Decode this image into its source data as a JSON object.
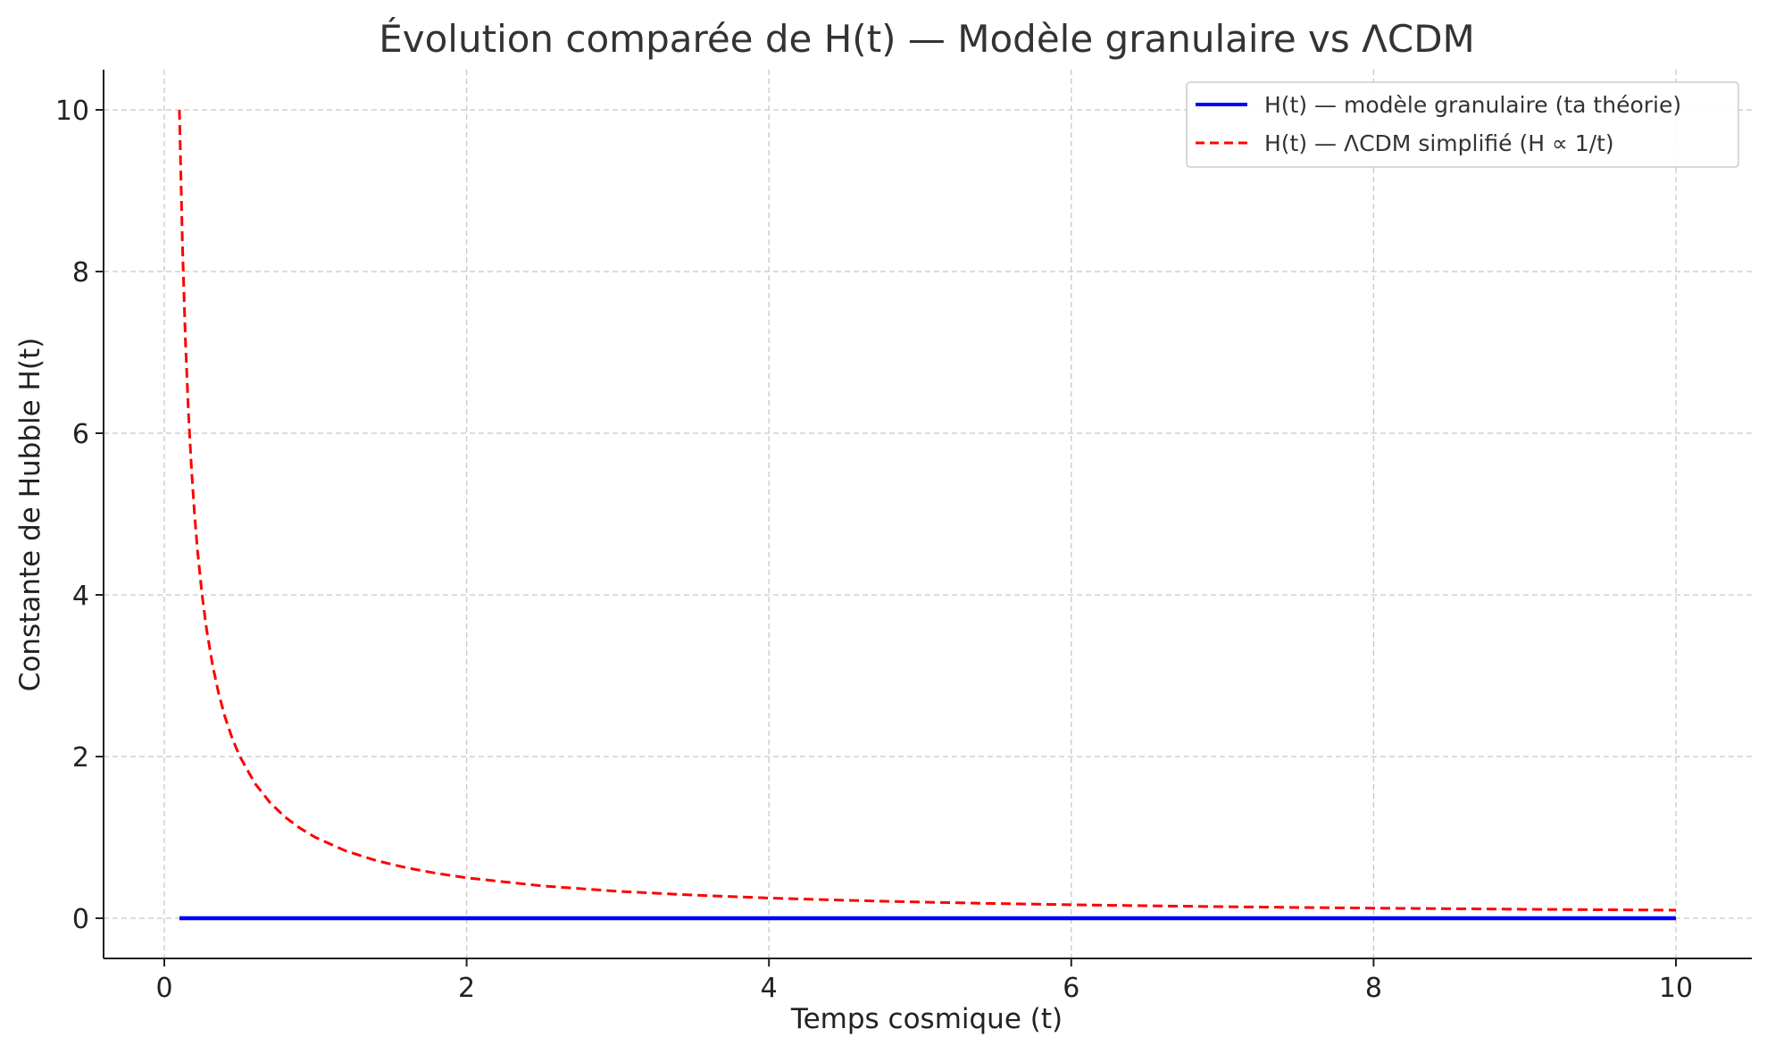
{
  "chart_data": {
    "type": "line",
    "title": "Évolution comparée de H(t) — Modèle granulaire vs ΛCDM",
    "xlabel": "Temps cosmique (t)",
    "ylabel": "Constante de Hubble H(t)",
    "xlim": [
      -0.4,
      10.5
    ],
    "ylim": [
      -0.5,
      10.5
    ],
    "xticks": [
      0,
      2,
      4,
      6,
      8,
      10
    ],
    "yticks": [
      0,
      2,
      4,
      6,
      8,
      10
    ],
    "grid": true,
    "legend_position": "top-right",
    "series": [
      {
        "name": "H(t) — modèle granulaire (ta théorie)",
        "color": "#0000ff",
        "style": "solid",
        "x": [
          0.1,
          1,
          2,
          3,
          4,
          5,
          6,
          7,
          8,
          9,
          10
        ],
        "y": [
          0,
          0,
          0,
          0,
          0,
          0,
          0,
          0,
          0,
          0,
          0
        ]
      },
      {
        "name": "H(t) — ΛCDM simplifié (H ∝ 1/t)",
        "color": "#ff0000",
        "style": "dashed",
        "x": [
          0.1,
          0.12,
          0.14,
          0.16,
          0.18,
          0.2,
          0.22,
          0.25,
          0.28,
          0.32,
          0.36,
          0.4,
          0.45,
          0.5,
          0.6,
          0.7,
          0.8,
          0.9,
          1.0,
          1.2,
          1.4,
          1.6,
          1.8,
          2.0,
          2.5,
          3,
          3.5,
          4,
          4.5,
          5,
          5.5,
          6,
          6.5,
          7,
          7.5,
          8,
          8.5,
          9,
          9.5,
          10
        ],
        "y": [
          10,
          8.333,
          7.143,
          6.25,
          5.556,
          5,
          4.545,
          4,
          3.571,
          3.125,
          2.778,
          2.5,
          2.222,
          2,
          1.667,
          1.429,
          1.25,
          1.111,
          1.0,
          0.833,
          0.714,
          0.625,
          0.556,
          0.5,
          0.4,
          0.333,
          0.286,
          0.25,
          0.222,
          0.2,
          0.182,
          0.167,
          0.154,
          0.143,
          0.133,
          0.125,
          0.118,
          0.111,
          0.105,
          0.1
        ]
      }
    ]
  }
}
